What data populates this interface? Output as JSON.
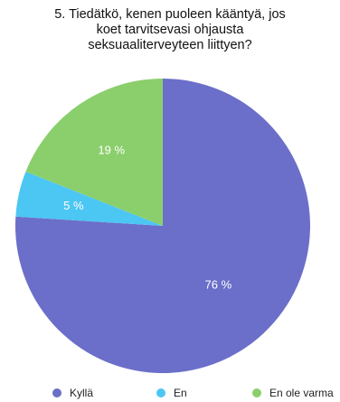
{
  "chart_data": {
    "type": "pie",
    "title_lines": [
      "5. Tiedätkö, kenen puoleen kääntyä, jos",
      "koet tarvitsevasi ohjausta",
      "seksuaaliterveyteen liittyen?"
    ],
    "slices": [
      {
        "name": "Kyllä",
        "value": 76,
        "label": "76 %",
        "color": "#6b6fc9"
      },
      {
        "name": "En",
        "value": 5,
        "label": "5 %",
        "color": "#4cc6f3"
      },
      {
        "name": "En ole varma",
        "value": 19,
        "label": "19 %",
        "color": "#8bcf6c"
      }
    ],
    "start_angle_deg": 0,
    "direction": "clockwise",
    "legend_position": "bottom"
  }
}
